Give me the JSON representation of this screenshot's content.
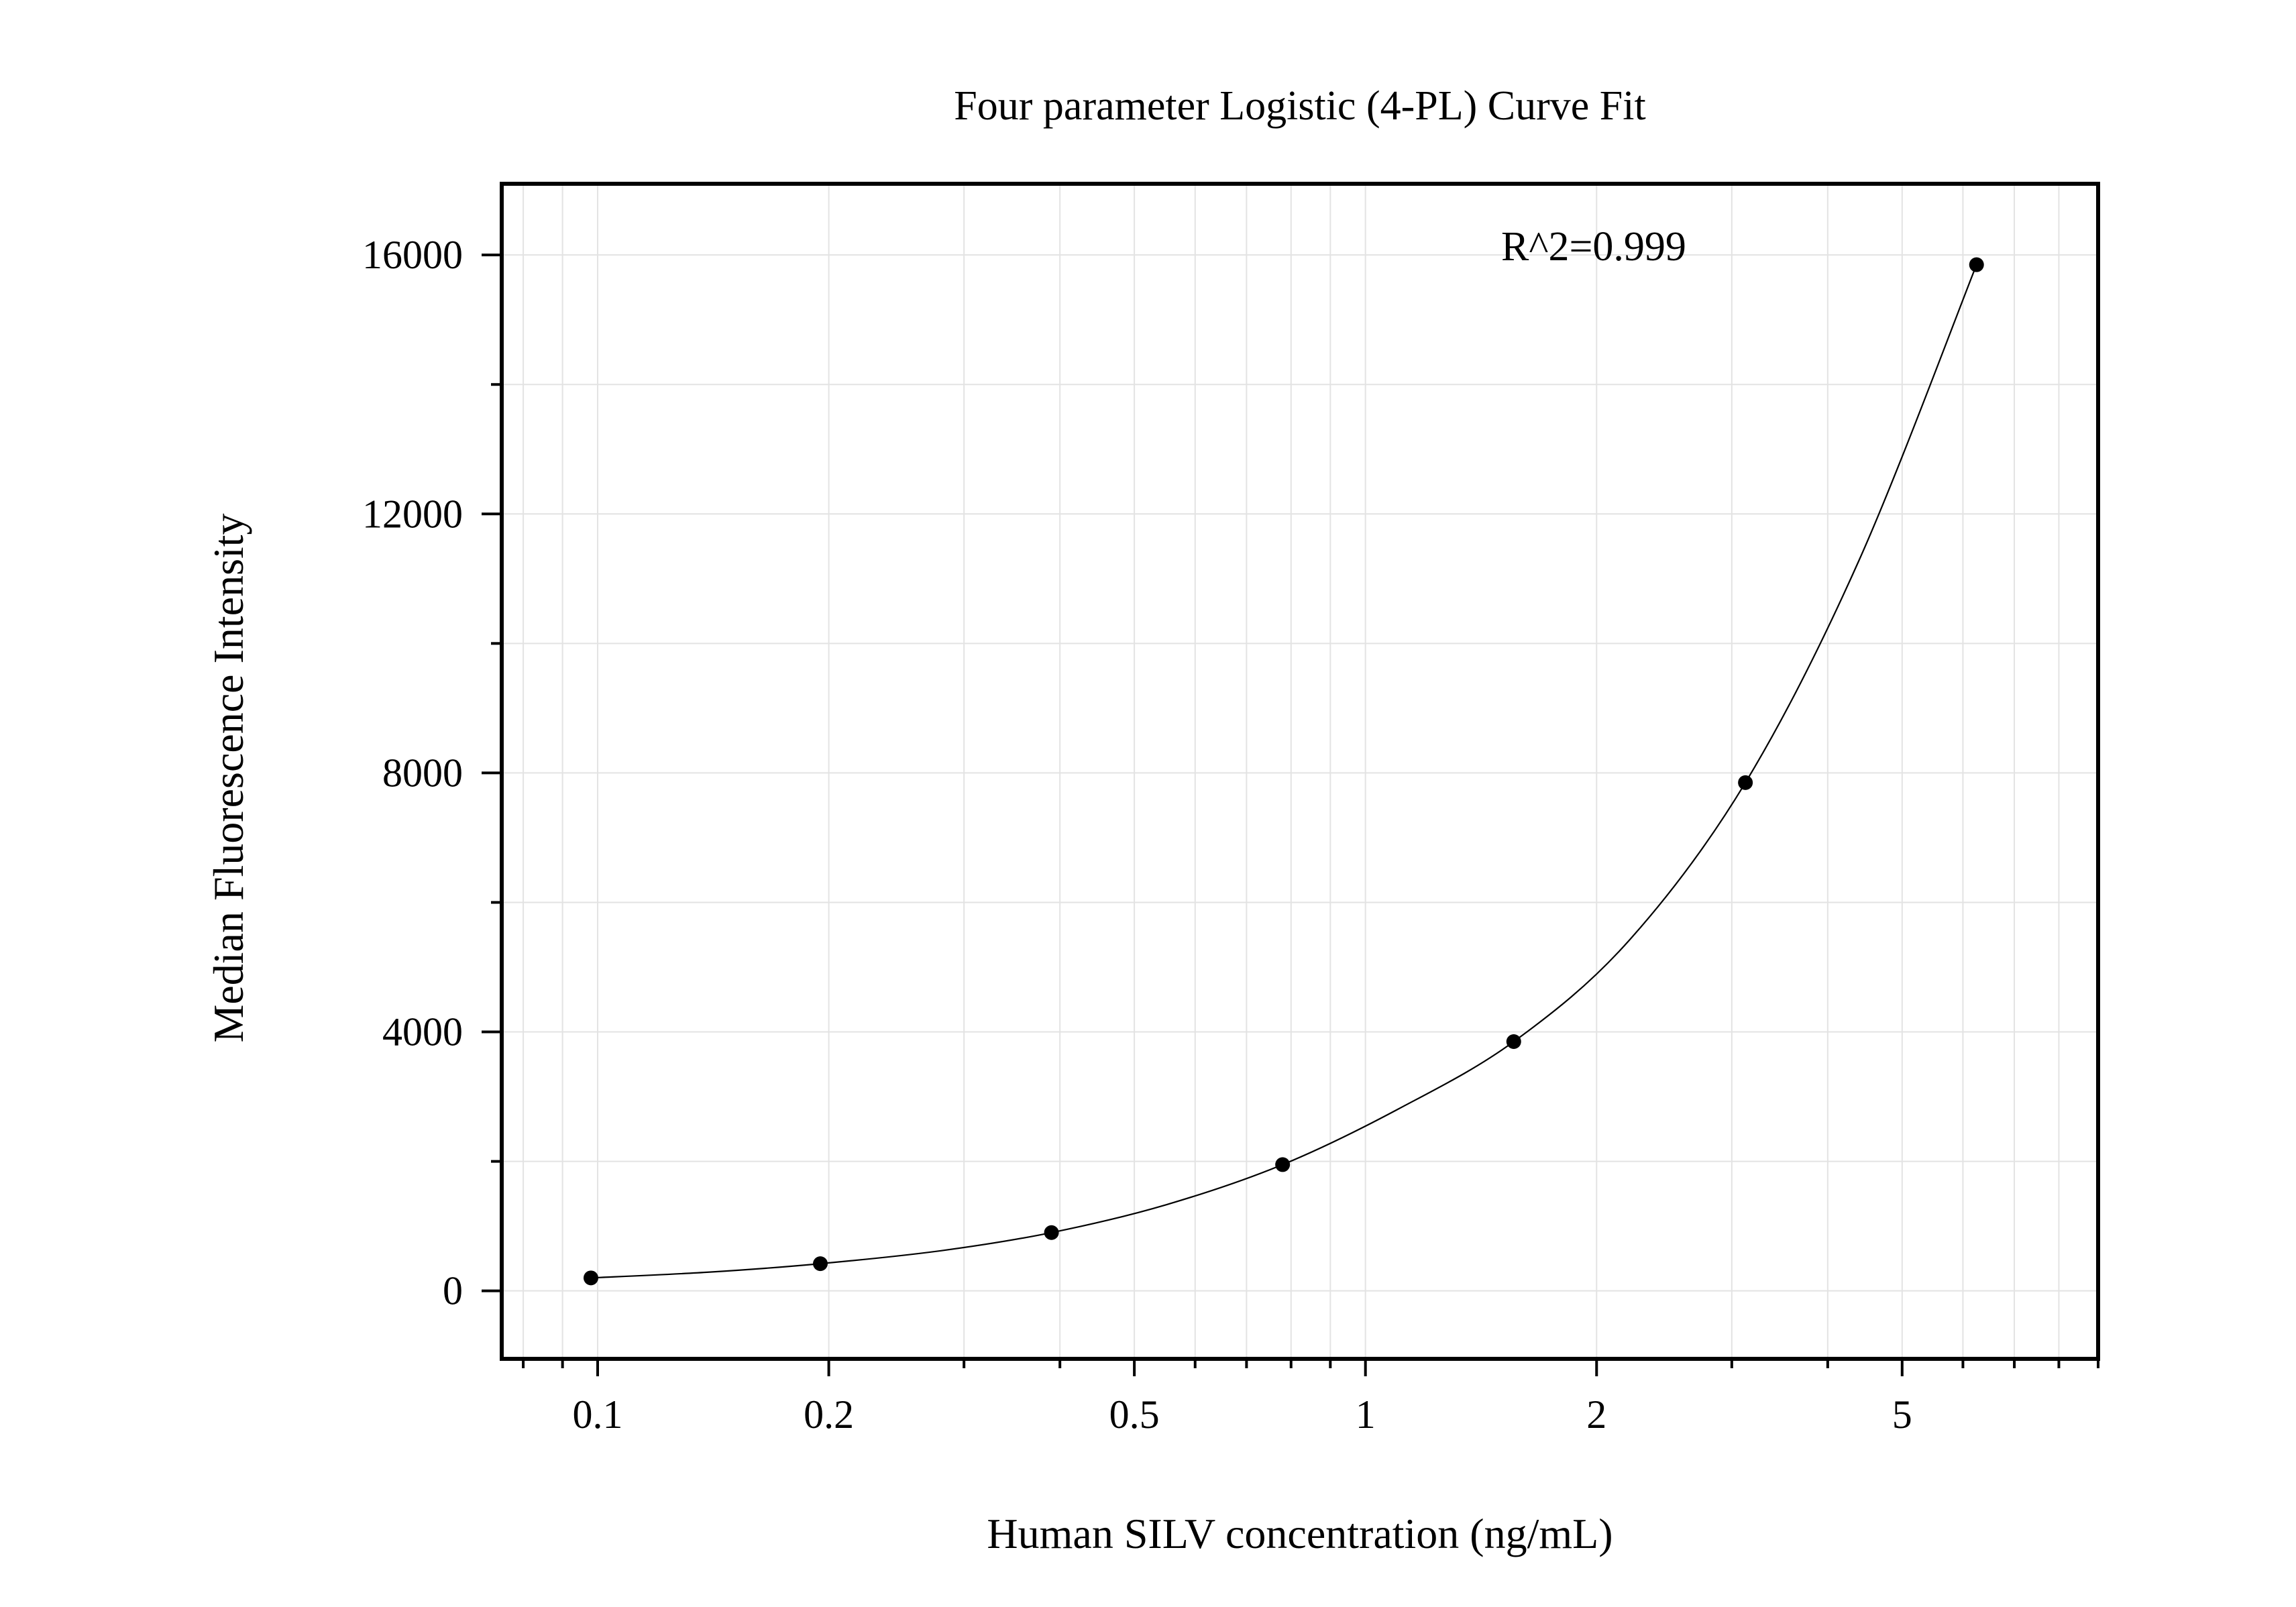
{
  "chart_data": {
    "type": "scatter",
    "title": "Four parameter Logistic (4-PL) Curve Fit",
    "xlabel": "Human SILV concentration (ng/mL)",
    "ylabel": "Median Fluorescence Intensity",
    "x_scale": "log",
    "xlim": [
      0.075,
      9.0
    ],
    "ylim": [
      -1050,
      17100
    ],
    "x_ticks": [
      0.1,
      0.2,
      0.5,
      1,
      2,
      5
    ],
    "x_tick_labels": [
      "0.1",
      "0.2",
      "0.5",
      "1",
      "2",
      "5"
    ],
    "y_ticks": [
      0,
      4000,
      8000,
      12000,
      16000
    ],
    "y_tick_labels": [
      "0",
      "4000",
      "8000",
      "12000",
      "16000"
    ],
    "y_minor_ticks": [
      2000,
      6000,
      10000,
      14000
    ],
    "grid": true,
    "annotation": "R^2=0.999",
    "series": [
      {
        "type": "scatter",
        "x": [
          0.098,
          0.195,
          0.39,
          0.78,
          1.56,
          3.125,
          6.25
        ],
        "y": [
          200,
          420,
          900,
          1950,
          3850,
          7850,
          15850
        ]
      },
      {
        "type": "line",
        "x": [
          0.098,
          0.14,
          0.195,
          0.28,
          0.39,
          0.55,
          0.78,
          1.1,
          1.56,
          2.2,
          3.125,
          4.4,
          6.25
        ],
        "y": [
          200,
          290,
          420,
          620,
          900,
          1330,
          1950,
          2800,
          3850,
          5400,
          7850,
          11300,
          15850
        ]
      }
    ]
  }
}
